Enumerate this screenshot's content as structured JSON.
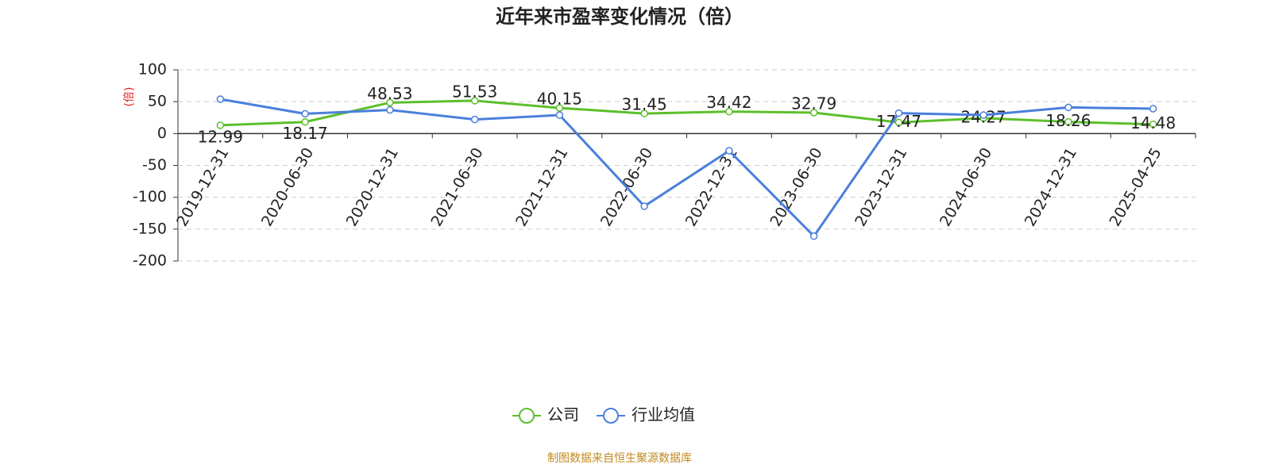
{
  "chart_data": {
    "type": "line",
    "title": "近年来市盈率变化情况（倍）",
    "y_label": "(倍)",
    "categories": [
      "2019-12-31",
      "2020-06-30",
      "2020-12-31",
      "2021-06-30",
      "2021-12-31",
      "2022-06-30",
      "2022-12-31",
      "2023-06-30",
      "2023-12-31",
      "2024-06-30",
      "2024-12-31",
      "2025-04-25"
    ],
    "series": [
      {
        "name": "公司",
        "color": "#5cbf2a",
        "values": [
          12.99,
          18.17,
          48.53,
          51.53,
          40.15,
          31.45,
          34.42,
          32.79,
          17.47,
          24.27,
          18.26,
          14.48
        ],
        "show_labels": true
      },
      {
        "name": "行业均值",
        "color": "#4a7fdc",
        "values": [
          54,
          31,
          37,
          22,
          29,
          -114,
          -27,
          -161,
          32,
          29,
          41,
          39
        ],
        "show_labels": false
      }
    ],
    "ylim": [
      -200,
      100
    ],
    "yticks": [
      -200,
      -150,
      -100,
      -50,
      0,
      50,
      100
    ],
    "grid": true,
    "legend": "bottom",
    "source": "制图数据来自恒生聚源数据库"
  }
}
